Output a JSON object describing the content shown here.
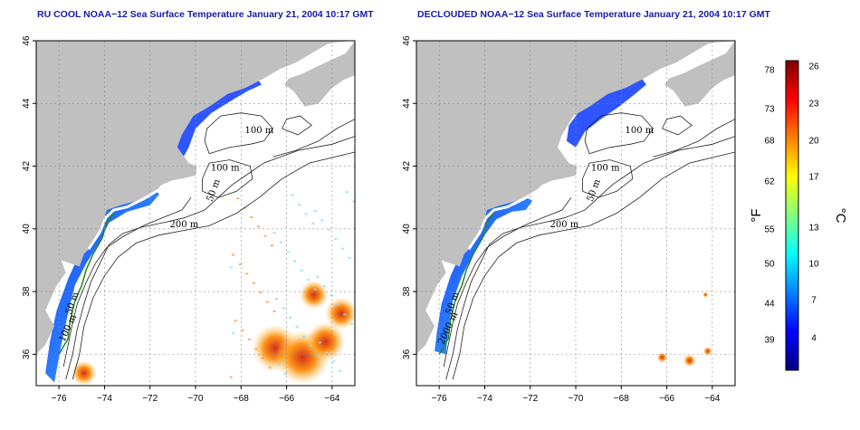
{
  "panels": [
    {
      "title": "RU COOL NOAA−12 Sea Surface Temperature January 21, 2004 10:17 GMT",
      "contours": [
        "100 m",
        "100 m",
        "50 m",
        "200 m",
        "50 m",
        "100 m"
      ],
      "clouds": "partial"
    },
    {
      "title": "DECLOUDED NOAA−12 Sea Surface Temperature January 21, 2004 10:17 GMT",
      "contours": [
        "100 m",
        "100 m",
        "50 m",
        "200 m",
        "50 m",
        "2000 m"
      ],
      "clouds": "declouded"
    }
  ],
  "map": {
    "lon_ticks": [
      "−76",
      "−74",
      "−72",
      "−70",
      "−68",
      "−66",
      "−64"
    ],
    "lat_ticks": [
      "36",
      "38",
      "40",
      "42",
      "44",
      "46"
    ],
    "land_color": "#c0c0c0",
    "grid": true
  },
  "colorbar": {
    "fahrenheit_ticks": [
      "78",
      "73",
      "68",
      "62",
      "55",
      "50",
      "44",
      "39"
    ],
    "celsius_ticks": [
      "26",
      "23",
      "20",
      "17",
      "13",
      "10",
      "7",
      "4"
    ],
    "fahrenheit_label": "°F",
    "celsius_label": "°C",
    "stops": [
      "#000080",
      "#0000ff",
      "#0080ff",
      "#00ffff",
      "#80ff80",
      "#ffff00",
      "#ff8000",
      "#ff0000",
      "#800000"
    ]
  }
}
